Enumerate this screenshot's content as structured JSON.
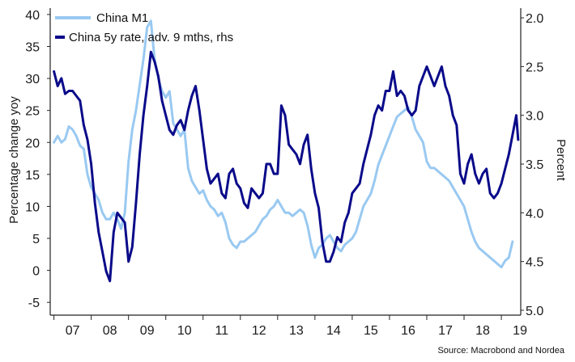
{
  "chart_data": {
    "type": "line",
    "title": "",
    "source": "Source: Macrobond and Nordea",
    "xlabel": "",
    "ylabel_left": "Percentage change yoy",
    "ylabel_right": "Percent",
    "x_ticks": [
      "07",
      "08",
      "09",
      "10",
      "11",
      "12",
      "13",
      "14",
      "15",
      "16",
      "17",
      "18",
      "19"
    ],
    "x_range": [
      2006.9,
      2019.52
    ],
    "ylim_left": [
      -7,
      41
    ],
    "yticks_left": [
      "40",
      "35",
      "30",
      "25",
      "20",
      "15",
      "10",
      "5",
      "0",
      "-5"
    ],
    "ylim_right_inverted": [
      1.9,
      5.05
    ],
    "yticks_right": [
      "2.0",
      "2.5",
      "3.0",
      "3.5",
      "4.0",
      "4.5",
      "5.0"
    ],
    "right_axis_inverted": true,
    "legend": {
      "placement": "top-left",
      "entries": [
        "China M1",
        "China 5y rate, adv. 9 mths, rhs"
      ]
    },
    "colors": {
      "m1": "#99c9f1",
      "rate": "#0a0a8a",
      "axis": "#222222"
    },
    "series": [
      {
        "name": "China M1",
        "axis": "left",
        "x": [
          2007.0,
          2007.1,
          2007.2,
          2007.3,
          2007.4,
          2007.5,
          2007.6,
          2007.7,
          2007.8,
          2007.9,
          2008.0,
          2008.1,
          2008.2,
          2008.3,
          2008.4,
          2008.5,
          2008.6,
          2008.7,
          2008.8,
          2008.9,
          2009.0,
          2009.1,
          2009.2,
          2009.3,
          2009.4,
          2009.5,
          2009.6,
          2009.7,
          2009.8,
          2009.9,
          2010.0,
          2010.1,
          2010.2,
          2010.3,
          2010.4,
          2010.5,
          2010.6,
          2010.7,
          2010.8,
          2010.9,
          2011.0,
          2011.1,
          2011.2,
          2011.3,
          2011.4,
          2011.5,
          2011.6,
          2011.7,
          2011.8,
          2011.9,
          2012.0,
          2012.1,
          2012.2,
          2012.3,
          2012.4,
          2012.5,
          2012.6,
          2012.7,
          2012.8,
          2012.9,
          2013.0,
          2013.1,
          2013.2,
          2013.3,
          2013.4,
          2013.5,
          2013.6,
          2013.7,
          2013.8,
          2013.9,
          2014.0,
          2014.1,
          2014.2,
          2014.3,
          2014.4,
          2014.5,
          2014.6,
          2014.7,
          2014.8,
          2014.9,
          2015.0,
          2015.1,
          2015.2,
          2015.3,
          2015.4,
          2015.5,
          2015.6,
          2015.7,
          2015.8,
          2015.9,
          2016.0,
          2016.1,
          2016.2,
          2016.3,
          2016.4,
          2016.5,
          2016.6,
          2016.7,
          2016.8,
          2016.9,
          2017.0,
          2017.1,
          2017.2,
          2017.3,
          2017.4,
          2017.5,
          2017.6,
          2017.7,
          2017.8,
          2017.9,
          2018.0,
          2018.1,
          2018.2,
          2018.3,
          2018.4,
          2018.5,
          2018.6,
          2018.7,
          2018.8,
          2018.9,
          2019.0,
          2019.1,
          2019.2,
          2019.3
        ],
        "values": [
          20,
          21,
          20,
          20.5,
          22.5,
          22,
          21,
          19.5,
          19,
          15,
          13,
          12,
          11,
          9,
          8,
          8,
          9,
          8,
          6.5,
          9,
          17,
          22,
          25,
          29,
          33,
          38,
          39,
          33,
          30,
          28,
          27,
          28,
          23,
          22,
          21,
          22,
          16,
          14,
          13,
          12,
          12.5,
          11,
          10,
          9.5,
          8.5,
          9,
          7.5,
          5,
          4,
          3.5,
          4.5,
          4.5,
          5,
          5.5,
          6,
          7,
          8,
          8.5,
          9.5,
          10,
          11,
          10,
          9,
          9,
          8.5,
          9,
          9.5,
          9,
          7,
          4,
          2,
          3.5,
          4,
          5,
          5.5,
          4.5,
          3.5,
          3,
          4,
          4.5,
          5,
          6,
          8,
          10,
          11,
          12,
          14,
          16.5,
          18,
          19.5,
          21,
          22.5,
          24,
          24.5,
          25,
          25.5,
          24,
          22,
          21,
          20,
          17,
          16,
          16,
          15.5,
          15,
          14.5,
          14,
          13,
          12,
          11,
          10,
          8,
          6,
          4.5,
          3.5,
          3,
          2.5,
          2,
          1.5,
          1,
          0.5,
          1.5,
          2,
          4.5
        ]
      },
      {
        "name": "China 5y rate, adv. 9 mths, rhs",
        "axis": "right",
        "x": [
          2007.0,
          2007.1,
          2007.2,
          2007.3,
          2007.4,
          2007.5,
          2007.6,
          2007.7,
          2007.8,
          2007.9,
          2008.0,
          2008.1,
          2008.2,
          2008.3,
          2008.4,
          2008.5,
          2008.6,
          2008.7,
          2008.8,
          2008.9,
          2009.0,
          2009.1,
          2009.2,
          2009.3,
          2009.4,
          2009.5,
          2009.6,
          2009.7,
          2009.8,
          2009.9,
          2010.0,
          2010.1,
          2010.2,
          2010.3,
          2010.4,
          2010.5,
          2010.6,
          2010.7,
          2010.8,
          2010.9,
          2011.0,
          2011.1,
          2011.2,
          2011.3,
          2011.4,
          2011.5,
          2011.6,
          2011.7,
          2011.8,
          2011.9,
          2012.0,
          2012.1,
          2012.2,
          2012.3,
          2012.4,
          2012.5,
          2012.6,
          2012.7,
          2012.8,
          2012.9,
          2013.0,
          2013.1,
          2013.2,
          2013.3,
          2013.4,
          2013.5,
          2013.6,
          2013.7,
          2013.8,
          2013.9,
          2014.0,
          2014.1,
          2014.2,
          2014.3,
          2014.4,
          2014.5,
          2014.6,
          2014.7,
          2014.8,
          2014.9,
          2015.0,
          2015.1,
          2015.2,
          2015.3,
          2015.4,
          2015.5,
          2015.6,
          2015.7,
          2015.8,
          2015.9,
          2016.0,
          2016.1,
          2016.2,
          2016.3,
          2016.4,
          2016.5,
          2016.6,
          2016.7,
          2016.8,
          2016.9,
          2017.0,
          2017.1,
          2017.2,
          2017.3,
          2017.4,
          2017.5,
          2017.6,
          2017.7,
          2017.8,
          2017.9,
          2018.0,
          2018.1,
          2018.2,
          2018.3,
          2018.4,
          2018.5,
          2018.6,
          2018.7,
          2018.8,
          2018.9,
          2019.0,
          2019.1,
          2019.2,
          2019.3,
          2019.4,
          2019.45
        ],
        "values": [
          2.55,
          2.7,
          2.62,
          2.78,
          2.75,
          2.75,
          2.8,
          2.85,
          3.1,
          3.25,
          3.5,
          3.9,
          4.2,
          4.4,
          4.6,
          4.7,
          4.2,
          4.0,
          4.05,
          4.1,
          4.5,
          4.35,
          3.9,
          3.4,
          3.0,
          2.7,
          2.35,
          2.45,
          2.6,
          2.85,
          3.0,
          3.15,
          3.2,
          3.1,
          3.05,
          3.15,
          2.95,
          2.8,
          2.7,
          2.95,
          3.25,
          3.55,
          3.7,
          3.65,
          3.6,
          3.8,
          3.85,
          3.6,
          3.55,
          3.7,
          3.75,
          3.9,
          3.95,
          3.75,
          3.8,
          3.85,
          3.8,
          3.5,
          3.5,
          3.6,
          3.6,
          2.9,
          3.0,
          3.3,
          3.35,
          3.4,
          3.5,
          3.3,
          3.2,
          3.55,
          3.8,
          3.95,
          4.3,
          4.5,
          4.5,
          4.4,
          4.25,
          4.3,
          4.1,
          4.0,
          3.8,
          3.75,
          3.7,
          3.5,
          3.35,
          3.2,
          3.0,
          2.9,
          2.95,
          2.75,
          2.75,
          2.55,
          2.8,
          2.75,
          2.8,
          2.95,
          3.0,
          2.95,
          2.7,
          2.6,
          2.5,
          2.6,
          2.7,
          2.6,
          2.5,
          2.7,
          2.8,
          3.0,
          3.1,
          3.6,
          3.7,
          3.5,
          3.4,
          3.6,
          3.7,
          3.6,
          3.55,
          3.8,
          3.85,
          3.8,
          3.7,
          3.55,
          3.4,
          3.2,
          3.0,
          3.25
        ]
      }
    ]
  }
}
